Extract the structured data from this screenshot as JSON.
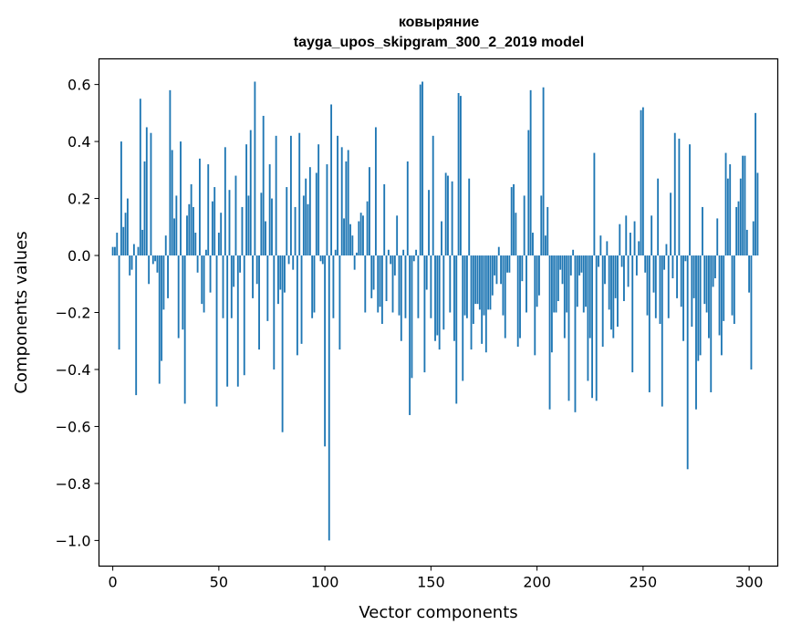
{
  "chart_data": {
    "type": "bar",
    "title_line1": "ковыряние",
    "title_line2": "tayga_upos_skipgram_300_2_2019 model",
    "xlabel": "Vector components",
    "ylabel": "Components values",
    "xlim": [
      -6.5,
      313.5
    ],
    "ylim": [
      -1.09,
      0.69
    ],
    "xticks": [
      0,
      50,
      100,
      150,
      200,
      250,
      300
    ],
    "xtick_labels": [
      "0",
      "50",
      "100",
      "150",
      "200",
      "250",
      "300"
    ],
    "yticks": [
      0.6,
      0.4,
      0.2,
      0.0,
      -0.2,
      -0.4,
      -0.6,
      -0.8,
      -1.0
    ],
    "ytick_labels": [
      "0.6",
      "0.4",
      "0.2",
      "0.0",
      "−0.2",
      "−0.4",
      "−0.6",
      "−0.8",
      "−1.0"
    ],
    "bar_color": "#1f77b4",
    "grid": false,
    "legend": "none",
    "values": [
      0.03,
      0.03,
      0.08,
      -0.33,
      0.4,
      0.1,
      0.15,
      0.2,
      -0.07,
      -0.05,
      0.04,
      -0.49,
      0.03,
      0.55,
      0.09,
      0.33,
      0.45,
      -0.1,
      0.43,
      -0.03,
      -0.02,
      -0.06,
      -0.45,
      -0.37,
      -0.19,
      0.07,
      -0.15,
      0.58,
      0.37,
      0.13,
      0.21,
      -0.29,
      0.4,
      -0.26,
      -0.52,
      0.14,
      0.18,
      0.25,
      0.17,
      0.08,
      -0.06,
      0.34,
      -0.17,
      -0.2,
      0.02,
      0.32,
      -0.13,
      0.19,
      0.24,
      -0.53,
      0.08,
      0.15,
      -0.22,
      0.38,
      -0.46,
      0.23,
      -0.22,
      -0.11,
      0.28,
      -0.46,
      -0.06,
      0.17,
      -0.42,
      0.39,
      0.21,
      0.44,
      -0.15,
      0.61,
      -0.1,
      -0.33,
      0.22,
      0.49,
      0.12,
      -0.23,
      0.32,
      0.2,
      -0.4,
      0.42,
      -0.17,
      -0.12,
      -0.62,
      -0.13,
      0.24,
      -0.03,
      0.42,
      -0.05,
      0.17,
      -0.35,
      0.43,
      -0.31,
      0.21,
      0.27,
      0.18,
      0.31,
      -0.22,
      -0.2,
      0.29,
      0.39,
      -0.02,
      -0.03,
      -0.67,
      0.32,
      -1.0,
      0.53,
      -0.22,
      0.02,
      0.42,
      -0.33,
      0.38,
      0.13,
      0.33,
      0.37,
      0.11,
      0.07,
      -0.05,
      0.01,
      0.12,
      0.15,
      0.14,
      -0.2,
      0.19,
      0.31,
      -0.15,
      -0.12,
      0.45,
      -0.2,
      -0.18,
      -0.24,
      0.25,
      -0.16,
      0.02,
      -0.03,
      -0.2,
      -0.07,
      0.14,
      -0.21,
      -0.3,
      0.02,
      -0.22,
      0.33,
      -0.56,
      -0.43,
      -0.02,
      0.02,
      -0.22,
      0.6,
      0.61,
      -0.41,
      -0.12,
      0.23,
      -0.22,
      0.42,
      -0.3,
      -0.28,
      -0.33,
      0.12,
      -0.26,
      0.29,
      0.28,
      -0.2,
      0.26,
      -0.3,
      -0.52,
      0.57,
      0.56,
      -0.44,
      -0.21,
      -0.22,
      0.27,
      -0.33,
      -0.24,
      -0.17,
      -0.17,
      -0.19,
      -0.31,
      -0.21,
      -0.34,
      -0.19,
      -0.19,
      -0.14,
      -0.07,
      -0.1,
      0.03,
      -0.1,
      -0.21,
      -0.29,
      -0.06,
      -0.06,
      0.24,
      0.25,
      0.15,
      -0.32,
      -0.29,
      -0.09,
      0.21,
      -0.2,
      0.44,
      0.58,
      0.08,
      -0.35,
      -0.18,
      -0.14,
      0.21,
      0.59,
      0.07,
      0.17,
      -0.54,
      -0.34,
      -0.2,
      -0.2,
      -0.16,
      -0.05,
      -0.1,
      -0.29,
      -0.2,
      -0.51,
      -0.07,
      0.02,
      -0.55,
      -0.18,
      -0.07,
      -0.06,
      -0.2,
      -0.18,
      -0.44,
      -0.29,
      -0.5,
      0.36,
      -0.51,
      -0.04,
      0.07,
      -0.32,
      -0.1,
      0.05,
      -0.19,
      -0.26,
      -0.29,
      -0.15,
      -0.25,
      0.11,
      -0.04,
      -0.16,
      0.14,
      -0.11,
      0.08,
      -0.41,
      0.12,
      -0.07,
      0.05,
      0.51,
      0.52,
      -0.06,
      -0.21,
      -0.48,
      0.14,
      -0.13,
      -0.22,
      0.27,
      -0.24,
      -0.53,
      -0.05,
      0.04,
      -0.22,
      0.22,
      -0.08,
      0.43,
      -0.15,
      0.41,
      -0.18,
      -0.3,
      -0.02,
      -0.75,
      0.39,
      -0.25,
      -0.15,
      -0.54,
      -0.37,
      -0.35,
      0.17,
      -0.17,
      -0.2,
      -0.29,
      -0.48,
      -0.11,
      -0.08,
      0.13,
      -0.28,
      -0.35,
      -0.23,
      0.36,
      0.27,
      0.32,
      -0.21,
      -0.24,
      0.17,
      0.19,
      0.27,
      0.35,
      0.35,
      0.09,
      -0.13,
      -0.4,
      0.12,
      0.5,
      0.29
    ]
  }
}
